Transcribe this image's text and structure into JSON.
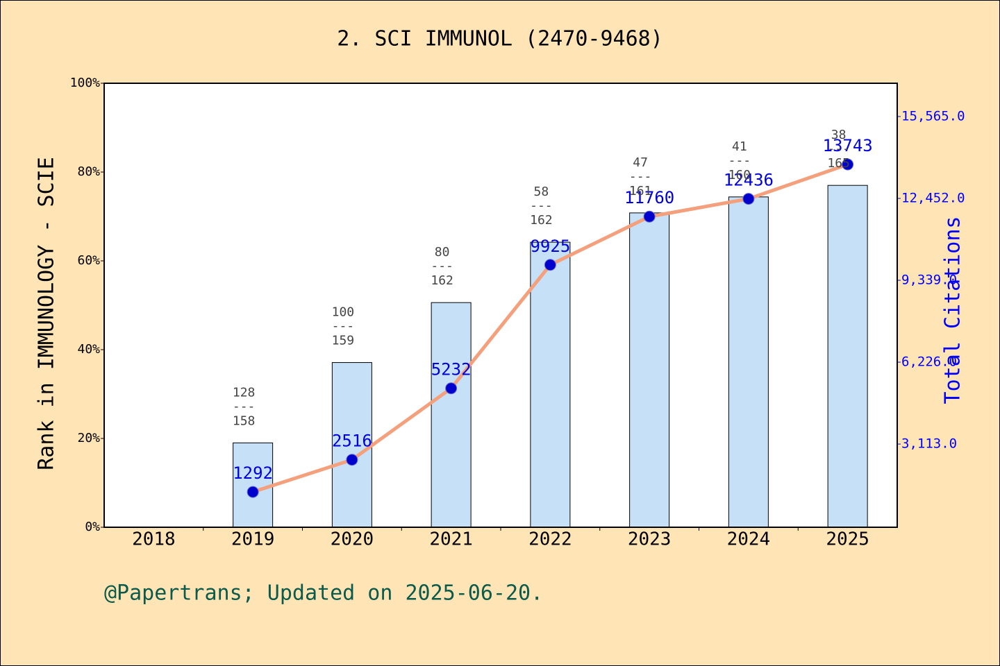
{
  "chart_data": {
    "type": "bar",
    "title": "2. SCI IMMUNOL (2470-9468)",
    "y_label": "Rank in IMMUNOLOGY - SCIE",
    "y2_label": "Total Citations",
    "footer": "@Papertrans; Updated on 2025-06-20.",
    "categories": [
      "2018",
      "2019",
      "2020",
      "2021",
      "2022",
      "2023",
      "2024",
      "2025"
    ],
    "series": [
      {
        "type": "bar",
        "color": "#c6e0f7",
        "values": [
          null,
          19.0,
          37.1,
          50.6,
          64.2,
          70.8,
          74.4,
          77.0
        ]
      },
      {
        "type": "line",
        "axis": "y2",
        "color": "#f4a07c",
        "marker_color": "#0000cc",
        "label_color": "#0000dd",
        "values": [
          null,
          1292,
          2516,
          5232,
          9925,
          11760,
          12436,
          13743
        ]
      }
    ],
    "rank_labels": [
      null,
      {
        "rank": 128,
        "separator": "---",
        "total": 158
      },
      {
        "rank": 100,
        "separator": "---",
        "total": 159
      },
      {
        "rank": 80,
        "separator": "---",
        "total": 162
      },
      {
        "rank": 58,
        "separator": "---",
        "total": 162
      },
      {
        "rank": 47,
        "separator": "---",
        "total": 161
      },
      {
        "rank": 41,
        "separator": "---",
        "total": 160
      },
      {
        "rank": 38,
        "separator": "---",
        "total": 165
      }
    ],
    "ylim": [
      0,
      100
    ],
    "yticks": [
      {
        "value": 0,
        "label": "0%"
      },
      {
        "value": 20,
        "label": "20%"
      },
      {
        "value": 40,
        "label": "40%"
      },
      {
        "value": 60,
        "label": "60%"
      },
      {
        "value": 80,
        "label": "80%"
      },
      {
        "value": 100,
        "label": "100%"
      }
    ],
    "y2lim": [
      -50,
      16830
    ],
    "y2ticks": [
      {
        "value": 3113,
        "label": "3,113.0"
      },
      {
        "value": 6226,
        "label": "6,226.0"
      },
      {
        "value": 9339,
        "label": "9,339.0"
      },
      {
        "value": 12452,
        "label": "12,452.0"
      },
      {
        "value": 15565,
        "label": "15,565.0"
      }
    ]
  }
}
